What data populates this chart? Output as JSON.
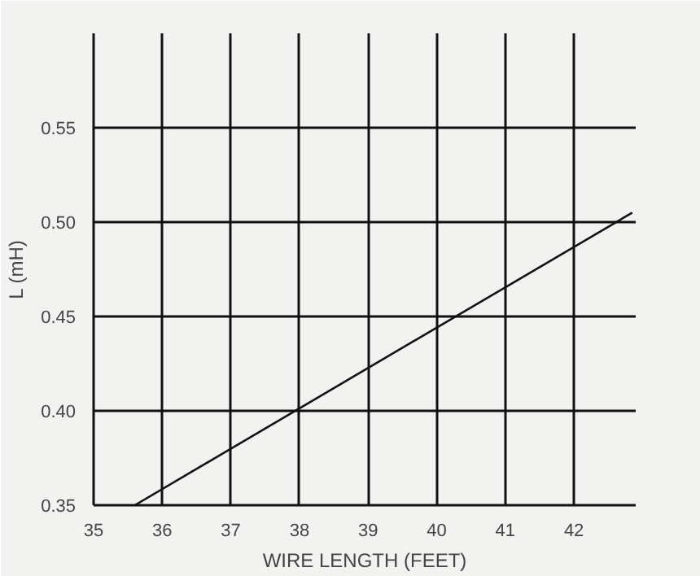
{
  "chart_data": {
    "type": "line",
    "xlabel": "WIRE LENGTH (FEET)",
    "ylabel": "L (mH)",
    "x": [
      35.6,
      42.85
    ],
    "series": [
      {
        "color": "#111111",
        "values": [
          0.35,
          0.505
        ]
      }
    ],
    "xlim": [
      35,
      42.9
    ],
    "ylim": [
      0.35,
      0.6
    ],
    "xticks": [
      35,
      36,
      37,
      38,
      39,
      40,
      41,
      42
    ],
    "yticks": [
      {
        "value": 0.35,
        "label": "0.35"
      },
      {
        "value": 0.4,
        "label": "0.40"
      },
      {
        "value": 0.45,
        "label": "0.45"
      },
      {
        "value": 0.5,
        "label": "0.50"
      },
      {
        "value": 0.55,
        "label": "0.55"
      }
    ],
    "grid": true,
    "marker": "none",
    "line_style": "solid"
  }
}
